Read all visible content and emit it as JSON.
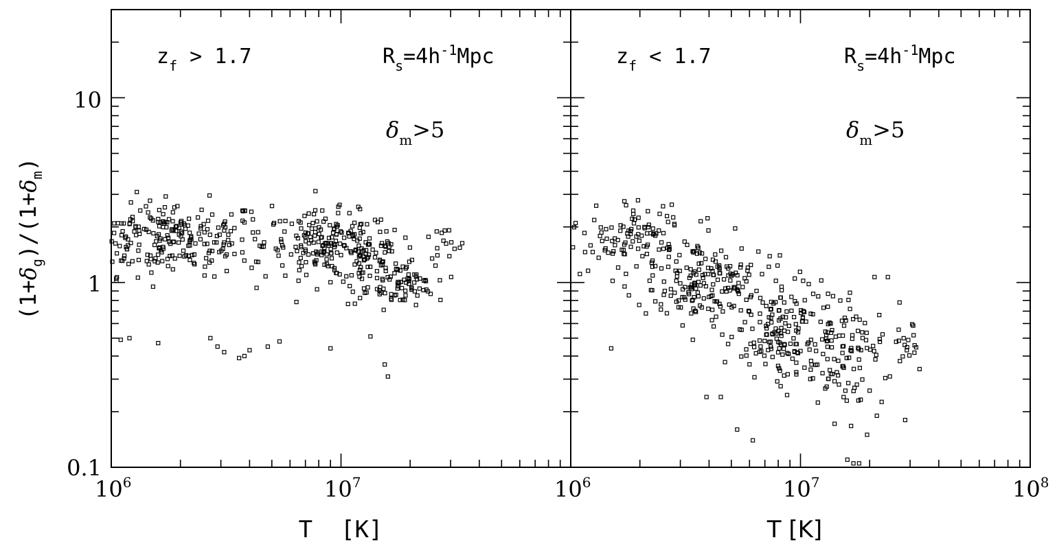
{
  "chart_data": [
    {
      "type": "scatter",
      "panel": "left",
      "annotations": {
        "zf_main": "z",
        "zf_sub": "f",
        "zf_text": " > 1.7",
        "rs_main": "R",
        "rs_sub": "s",
        "rs_eq": "=4h",
        "rs_sup": "-1",
        "rs_unit": "Mpc",
        "delta_main": "δ",
        "delta_sub": "m",
        "delta_text": ">5"
      },
      "xlabel": "T [K]",
      "ylabel": "(1+δg)/(1+δm)",
      "x_scale": "log",
      "y_scale": "log",
      "xlim": [
        1000000,
        100000000
      ],
      "ylim": [
        0.1,
        30
      ],
      "x_tick_labels": [
        {
          "base": "10",
          "exp": "6"
        },
        {
          "base": "10",
          "exp": "7"
        },
        {
          "base": "",
          "exp": ""
        }
      ],
      "y_tick_labels": [
        "0.1",
        "1",
        "10"
      ],
      "clusters": [
        {
          "logx_center": 6.25,
          "logx_spread": 0.22,
          "logy_center": 0.24,
          "logy_spread": 0.1,
          "count": 260
        },
        {
          "logx_center": 6.95,
          "logx_spread": 0.14,
          "logy_center": 0.2,
          "logy_spread": 0.09,
          "count": 190
        },
        {
          "logx_center": 7.18,
          "logx_spread": 0.09,
          "logy_center": 0.07,
          "logy_spread": 0.09,
          "count": 80
        },
        {
          "logx_center": 7.29,
          "logx_spread": 0.06,
          "logy_center": -0.01,
          "logy_spread": 0.05,
          "count": 45
        },
        {
          "logx_center": 7.44,
          "logx_spread": 0.06,
          "logy_center": 0.2,
          "logy_spread": 0.05,
          "count": 14
        }
      ],
      "outliers": [
        [
          1100000.0,
          0.49
        ],
        [
          1200000.0,
          0.5
        ],
        [
          1600000.0,
          0.47
        ],
        [
          2700000.0,
          0.5
        ],
        [
          2900000.0,
          0.45
        ],
        [
          3100000.0,
          0.42
        ],
        [
          3600000.0,
          0.39
        ],
        [
          3800000.0,
          0.4
        ],
        [
          4000000.0,
          0.43
        ],
        [
          4800000.0,
          0.45
        ],
        [
          5400000.0,
          0.48
        ],
        [
          9000000.0,
          0.44
        ],
        [
          15500000.0,
          0.36
        ],
        [
          16000000.0,
          0.31
        ],
        [
          1050000.0,
          1.05
        ]
      ]
    },
    {
      "type": "scatter",
      "panel": "right",
      "annotations": {
        "zf_main": "z",
        "zf_sub": "f",
        "zf_text": " < 1.7",
        "rs_main": "R",
        "rs_sub": "s",
        "rs_eq": "=4h",
        "rs_sup": "-1",
        "rs_unit": "Mpc",
        "delta_main": "δ",
        "delta_sub": "m",
        "delta_text": ">5"
      },
      "xlabel": "T [K]",
      "ylabel": "",
      "x_scale": "log",
      "y_scale": "log",
      "xlim": [
        1000000,
        100000000
      ],
      "ylim": [
        0.1,
        30
      ],
      "x_tick_labels": [
        {
          "base": "10",
          "exp": "6"
        },
        {
          "base": "10",
          "exp": "7"
        },
        {
          "base": "10",
          "exp": "8"
        }
      ],
      "clusters": [
        {
          "logx_center": 6.25,
          "logx_spread": 0.14,
          "logy_center": 0.22,
          "logy_spread": 0.1,
          "count": 110
        },
        {
          "logx_center": 6.6,
          "logx_spread": 0.12,
          "logy_center": 0.0,
          "logy_spread": 0.12,
          "count": 170
        },
        {
          "logx_center": 6.92,
          "logx_spread": 0.1,
          "logy_center": -0.27,
          "logy_spread": 0.15,
          "count": 150
        },
        {
          "logx_center": 7.2,
          "logx_spread": 0.1,
          "logy_center": -0.4,
          "logy_spread": 0.18,
          "count": 110
        },
        {
          "logx_center": 7.45,
          "logx_spread": 0.04,
          "logy_center": -0.32,
          "logy_spread": 0.05,
          "count": 16
        }
      ],
      "outliers": [
        [
          1050000.0,
          2.1
        ],
        [
          1500000.0,
          0.44
        ],
        [
          3400000.0,
          0.49
        ],
        [
          3900000.0,
          0.24
        ],
        [
          4500000.0,
          0.24
        ],
        [
          5300000.0,
          0.16
        ],
        [
          6200000.0,
          0.14
        ],
        [
          10000000.0,
          0.1
        ],
        [
          16000000.0,
          0.11
        ],
        [
          17000000.0,
          0.105
        ],
        [
          18000000.0,
          0.105
        ],
        [
          19500000.0,
          0.15
        ],
        [
          21500000.0,
          0.19
        ],
        [
          21000000.0,
          1.07
        ],
        [
          24000000.0,
          1.07
        ],
        [
          33000000.0,
          0.34
        ],
        [
          27000000.0,
          0.78
        ]
      ]
    }
  ]
}
